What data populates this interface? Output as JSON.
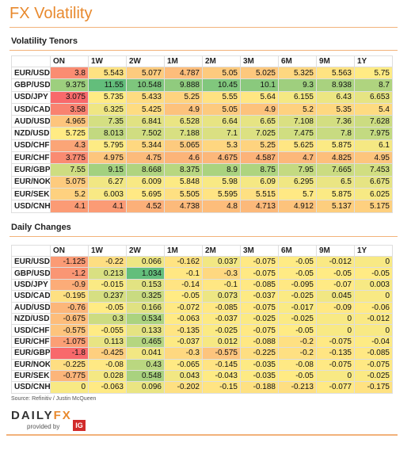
{
  "header": {
    "title": "FX Volatility"
  },
  "tables": [
    {
      "title": "Volatility Tenors",
      "columns": [
        "ON",
        "1W",
        "2W",
        "1M",
        "2M",
        "3M",
        "6M",
        "9M",
        "1Y"
      ],
      "rows": [
        {
          "label": "EUR/USD",
          "values": [
            3.8,
            5.543,
            5.077,
            4.787,
            5.05,
            5.025,
            5.325,
            5.563,
            5.75
          ]
        },
        {
          "label": "GBP/USD",
          "values": [
            9.375,
            11.55,
            10.548,
            9.888,
            10.45,
            10.1,
            9.3,
            8.938,
            8.7
          ]
        },
        {
          "label": "USD/JPY",
          "values": [
            3.075,
            5.735,
            5.433,
            5.25,
            5.55,
            5.64,
            6.155,
            6.43,
            6.653
          ]
        },
        {
          "label": "USD/CAD",
          "values": [
            3.58,
            6.325,
            5.425,
            4.9,
            5.05,
            4.9,
            5.2,
            5.35,
            5.4
          ]
        },
        {
          "label": "AUD/USD",
          "values": [
            4.965,
            7.35,
            6.841,
            6.528,
            6.64,
            6.65,
            7.108,
            7.36,
            7.628
          ]
        },
        {
          "label": "NZD/USD",
          "values": [
            5.725,
            8.013,
            7.502,
            7.188,
            7.1,
            7.025,
            7.475,
            7.8,
            7.975
          ]
        },
        {
          "label": "USD/CHF",
          "values": [
            4.3,
            5.795,
            5.344,
            5.065,
            5.3,
            5.25,
            5.625,
            5.875,
            6.1
          ]
        },
        {
          "label": "EUR/CHF",
          "values": [
            3.775,
            4.975,
            4.75,
            4.6,
            4.675,
            4.587,
            4.7,
            4.825,
            4.95
          ]
        },
        {
          "label": "EUR/GBP",
          "values": [
            7.55,
            9.15,
            8.668,
            8.375,
            8.9,
            8.75,
            7.95,
            7.665,
            7.453
          ]
        },
        {
          "label": "EUR/NOK",
          "values": [
            5.075,
            6.27,
            6.009,
            5.848,
            5.98,
            6.09,
            6.295,
            6.5,
            6.675
          ]
        },
        {
          "label": "EUR/SEK",
          "values": [
            5.2,
            6.003,
            5.695,
            5.505,
            5.595,
            5.515,
            5.7,
            5.875,
            6.025
          ]
        },
        {
          "label": "USD/CNH",
          "values": [
            4.1,
            4.1,
            4.52,
            4.738,
            4.8,
            4.713,
            4.912,
            5.137,
            5.175
          ]
        }
      ]
    },
    {
      "title": "Daily Changes",
      "columns": [
        "ON",
        "1W",
        "2W",
        "1M",
        "2M",
        "3M",
        "6M",
        "9M",
        "1Y"
      ],
      "rows": [
        {
          "label": "EUR/USD",
          "values": [
            -1.125,
            -0.22,
            0.066,
            -0.162,
            0.037,
            -0.075,
            -0.05,
            -0.012,
            0
          ]
        },
        {
          "label": "GBP/USD",
          "values": [
            -1.2,
            0.213,
            1.034,
            -0.1,
            -0.3,
            -0.075,
            -0.05,
            -0.05,
            -0.05
          ]
        },
        {
          "label": "USD/JPY",
          "values": [
            -0.9,
            -0.015,
            0.153,
            -0.14,
            -0.1,
            -0.085,
            -0.095,
            -0.07,
            0.003
          ]
        },
        {
          "label": "USD/CAD",
          "values": [
            -0.195,
            0.237,
            0.325,
            -0.05,
            0.073,
            -0.037,
            -0.025,
            0.045,
            0
          ]
        },
        {
          "label": "AUD/USD",
          "values": [
            -0.76,
            -0.05,
            0.166,
            -0.072,
            -0.085,
            -0.075,
            -0.017,
            -0.09,
            -0.06
          ]
        },
        {
          "label": "NZD/USD",
          "values": [
            -0.675,
            0.3,
            0.534,
            -0.063,
            -0.037,
            -0.025,
            -0.025,
            0,
            -0.012
          ]
        },
        {
          "label": "USD/CHF",
          "values": [
            -0.575,
            -0.055,
            0.133,
            -0.135,
            -0.025,
            -0.075,
            -0.05,
            0,
            0
          ]
        },
        {
          "label": "EUR/CHF",
          "values": [
            -1.075,
            0.113,
            0.465,
            -0.037,
            0.012,
            -0.088,
            -0.2,
            -0.075,
            -0.04
          ]
        },
        {
          "label": "EUR/GBP",
          "values": [
            -1.8,
            -0.425,
            0.041,
            -0.3,
            -0.575,
            -0.225,
            -0.2,
            -0.135,
            -0.085
          ]
        },
        {
          "label": "EUR/NOK",
          "values": [
            -0.225,
            -0.08,
            0.43,
            -0.065,
            -0.145,
            -0.035,
            -0.08,
            -0.075,
            -0.075
          ]
        },
        {
          "label": "EUR/SEK",
          "values": [
            -0.775,
            0.028,
            0.548,
            0.043,
            -0.043,
            -0.035,
            -0.05,
            0,
            -0.025
          ]
        },
        {
          "label": "USD/CNH",
          "values": [
            0,
            -0.063,
            0.096,
            -0.202,
            -0.15,
            -0.188,
            -0.213,
            -0.077,
            -0.175
          ]
        }
      ]
    }
  ],
  "footer": {
    "source": "Source: Refinitiv / Justin McQueen",
    "logo": {
      "part1": "DAILY",
      "part2": "FX",
      "provided": "provided by",
      "ig": "IG"
    }
  }
}
